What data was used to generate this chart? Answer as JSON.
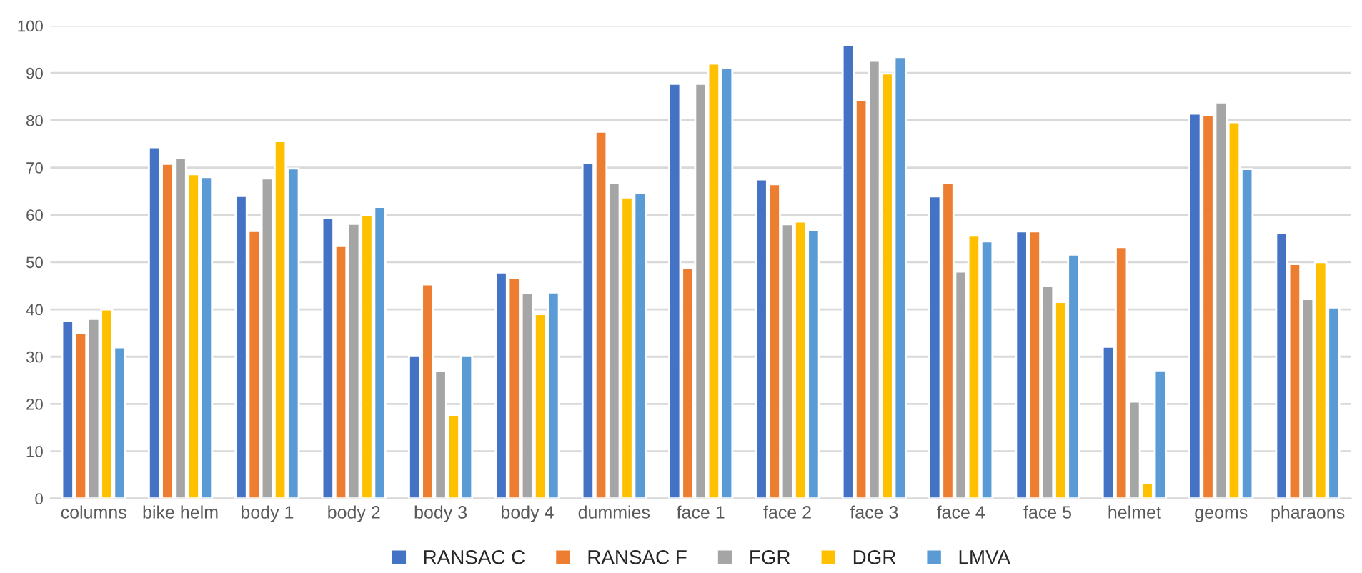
{
  "chart_data": {
    "type": "bar",
    "categories": [
      "columns",
      "bike helm",
      "body 1",
      "body 2",
      "body 3",
      "body 4",
      "dummies",
      "face 1",
      "face 2",
      "face 3",
      "face 4",
      "face 5",
      "helmet",
      "geoms",
      "pharaons"
    ],
    "series": [
      {
        "name": "RANSAC C",
        "color": "#4472c4",
        "values": [
          37.5,
          74.3,
          64,
          59.3,
          30.3,
          47.8,
          71,
          87.7,
          67.5,
          96,
          63.9,
          56.5,
          32.1,
          81.4,
          56.1
        ]
      },
      {
        "name": "RANSAC F",
        "color": "#ed7d31",
        "values": [
          35,
          70.8,
          56.6,
          53.4,
          45.3,
          46.6,
          77.6,
          48.7,
          66.5,
          84.2,
          66.7,
          56.5,
          53.2,
          81.1,
          49.6
        ]
      },
      {
        "name": "FGR",
        "color": "#a5a5a5",
        "values": [
          38,
          72,
          67.7,
          58.1,
          27,
          43.5,
          66.8,
          87.7,
          58,
          92.6,
          48,
          45,
          20.5,
          83.8,
          42.2
        ]
      },
      {
        "name": "DGR",
        "color": "#ffc000",
        "values": [
          40,
          68.6,
          75.6,
          60,
          17.7,
          39,
          63.7,
          92,
          58.6,
          89.9,
          55.6,
          41.6,
          3.3,
          79.6,
          50
        ]
      },
      {
        "name": "LMVA",
        "color": "#5b9bd5",
        "values": [
          32,
          68,
          69.8,
          61.7,
          30.3,
          43.6,
          64.7,
          91,
          56.8,
          93.4,
          54.4,
          51.6,
          27.1,
          69.7,
          40.4
        ]
      }
    ],
    "ylim": [
      0,
      100
    ],
    "yticks": [
      0,
      10,
      20,
      30,
      40,
      50,
      60,
      70,
      80,
      90,
      100
    ],
    "grid": "y",
    "legend": "bottom"
  }
}
